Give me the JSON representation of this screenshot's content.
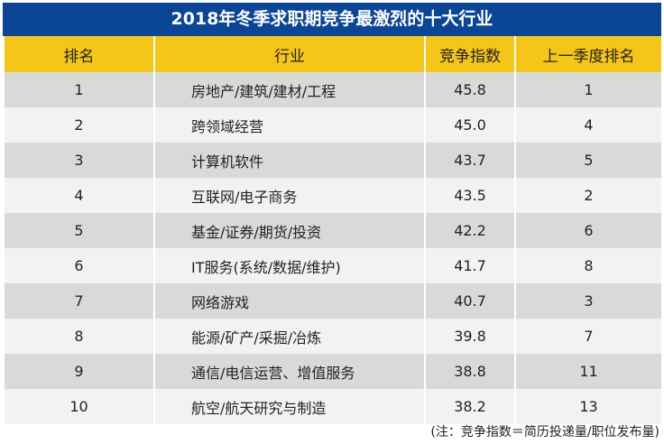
{
  "title": "2018年冬季求职期竞争最激烈的十大行业",
  "headers": [
    "排名",
    "行业",
    "竞争指数",
    "上一季度排名"
  ],
  "rows": [
    [
      "1",
      "房地产/建筑/建材/工程",
      "45.8",
      "1"
    ],
    [
      "2",
      "跨领域经营",
      "45.0",
      "4"
    ],
    [
      "3",
      "计算机软件",
      "43.7",
      "5"
    ],
    [
      "4",
      "互联网/电子商务",
      "43.5",
      "2"
    ],
    [
      "5",
      "基金/证券/期货/投资",
      "42.2",
      "6"
    ],
    [
      "6",
      "IT服务(系统/数据/维护)",
      "41.7",
      "8"
    ],
    [
      "7",
      "网络游戏",
      "40.7",
      "3"
    ],
    [
      "8",
      "能源/矿产/采掘/冶炼",
      "39.8",
      "7"
    ],
    [
      "9",
      "通信/电信运营、增值服务",
      "38.8",
      "11"
    ],
    [
      "10",
      "航空/航天研究与制造",
      "38.2",
      "13"
    ]
  ],
  "note": "(注：竞争指数＝简历投递量/职位发布量)"
}
